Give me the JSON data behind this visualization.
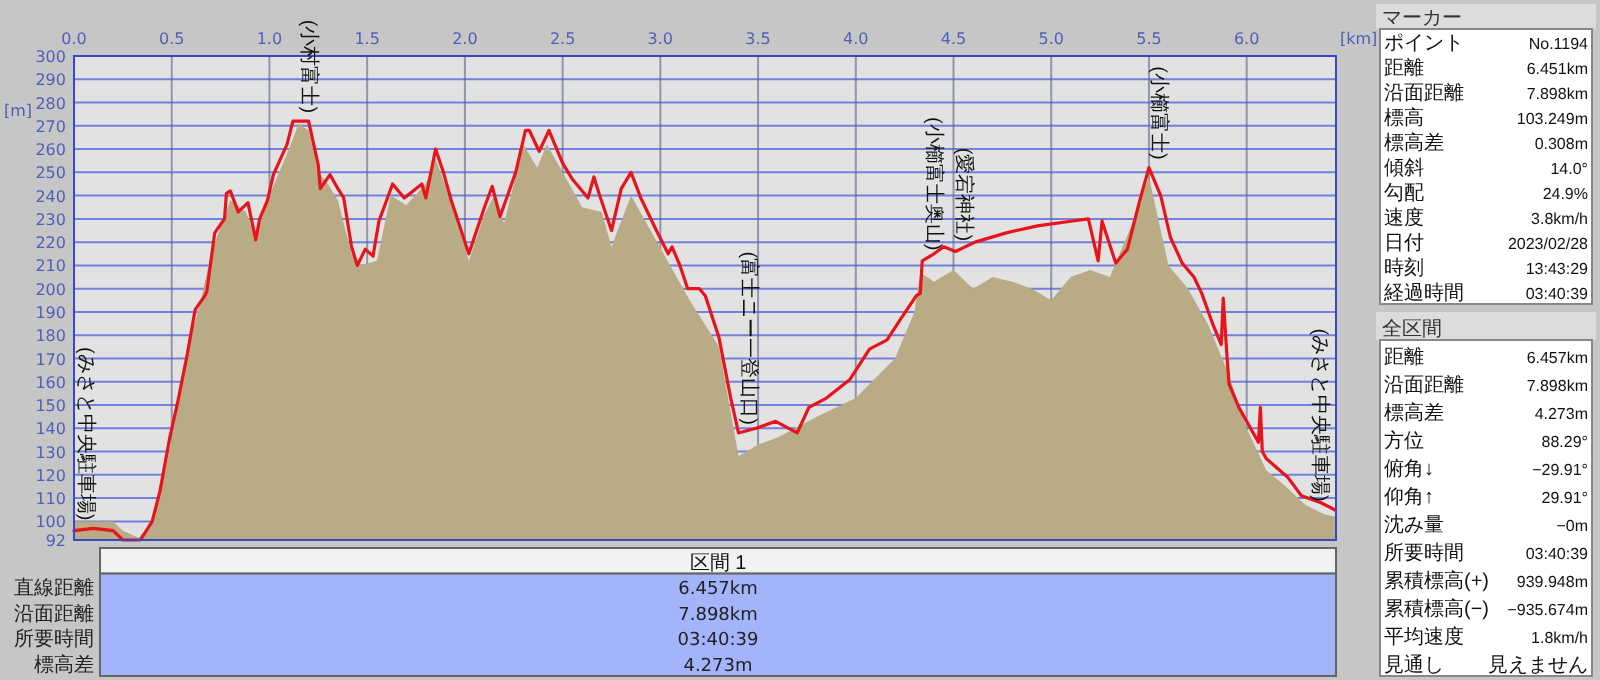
{
  "chart_data": [
    {
      "type": "line",
      "xlabel": "[km]",
      "ylabel": "[m]",
      "xlim": [
        0,
        6.457
      ],
      "ylim": [
        92,
        300
      ],
      "xticks": [
        {
          "value": 0,
          "label": "0.0"
        },
        0.5,
        {
          "value": 1,
          "label": "1.0"
        },
        1.5,
        {
          "value": 2,
          "label": "2.0"
        },
        2.5,
        {
          "value": 3,
          "label": "3.0"
        },
        3.5,
        {
          "value": 4,
          "label": "4.0"
        },
        4.5,
        {
          "value": 5,
          "label": "5.0"
        },
        5.5,
        {
          "value": 6,
          "label": "6.0"
        }
      ],
      "yticks": [
        92,
        100,
        110,
        120,
        130,
        140,
        150,
        160,
        170,
        180,
        190,
        200,
        210,
        220,
        230,
        240,
        250,
        260,
        270,
        280,
        290,
        300
      ],
      "grid": true,
      "series": [
        {
          "type": "area",
          "color": "#b9ab86",
          "x": [
            0,
            0.2,
            0.25,
            0.33,
            0.4,
            0.45,
            0.5,
            0.55,
            0.6,
            0.65,
            0.7,
            0.8,
            0.88,
            0.93,
            1.0,
            1.1,
            1.15,
            1.2,
            1.25,
            1.3,
            1.35,
            1.42,
            1.47,
            1.55,
            1.62,
            1.7,
            1.8,
            1.85,
            1.93,
            2.02,
            2.1,
            2.15,
            2.2,
            2.3,
            2.37,
            2.42,
            2.5,
            2.6,
            2.7,
            2.75,
            2.85,
            2.95,
            3.05,
            3.15,
            3.3,
            3.4,
            3.5,
            3.6,
            3.8,
            4.0,
            4.2,
            4.3,
            4.33,
            4.4,
            4.5,
            4.6,
            4.7,
            4.8,
            4.9,
            5.0,
            5.1,
            5.2,
            5.3,
            5.4,
            5.5,
            5.6,
            5.7,
            5.8,
            5.9,
            6.0,
            6.1,
            6.2,
            6.3,
            6.4,
            6.457
          ],
          "values": [
            100,
            100,
            96,
            93,
            100,
            115,
            135,
            160,
            180,
            195,
            215,
            238,
            233,
            222,
            240,
            260,
            271,
            268,
            250,
            245,
            238,
            215,
            210,
            212,
            240,
            236,
            245,
            256,
            237,
            212,
            232,
            240,
            228,
            262,
            252,
            262,
            250,
            235,
            233,
            218,
            240,
            225,
            210,
            195,
            175,
            128,
            133,
            136,
            145,
            153,
            170,
            190,
            207,
            203,
            208,
            200,
            205,
            203,
            200,
            195,
            205,
            208,
            205,
            225,
            248,
            210,
            200,
            185,
            165,
            140,
            122,
            115,
            107,
            103,
            102
          ]
        },
        {
          "type": "line",
          "color": "#e8141c",
          "x": [
            0,
            0.1,
            0.2,
            0.25,
            0.34,
            0.4,
            0.44,
            0.49,
            0.53,
            0.58,
            0.62,
            0.67,
            0.68,
            0.72,
            0.77,
            0.78,
            0.8,
            0.84,
            0.89,
            0.93,
            0.95,
            0.99,
            1.02,
            1.09,
            1.12,
            1.2,
            1.25,
            1.26,
            1.31,
            1.35,
            1.38,
            1.42,
            1.45,
            1.49,
            1.53,
            1.56,
            1.63,
            1.69,
            1.78,
            1.8,
            1.85,
            1.89,
            1.93,
            2.02,
            2.1,
            2.14,
            2.18,
            2.26,
            2.31,
            2.33,
            2.38,
            2.43,
            2.5,
            2.55,
            2.63,
            2.66,
            2.69,
            2.75,
            2.8,
            2.85,
            2.9,
            2.98,
            3.04,
            3.06,
            3.1,
            3.14,
            3.2,
            3.23,
            3.3,
            3.36,
            3.4,
            3.49,
            3.59,
            3.7,
            3.76,
            3.85,
            3.97,
            4.07,
            4.16,
            4.23,
            4.31,
            4.33,
            4.34,
            4.4,
            4.45,
            4.51,
            4.61,
            4.77,
            4.93,
            5.1,
            5.19,
            5.24,
            5.26,
            5.33,
            5.39,
            5.45,
            5.5,
            5.56,
            5.61,
            5.67,
            5.73,
            5.77,
            5.83,
            5.87,
            5.88,
            5.9,
            5.91,
            5.96,
            6.06,
            6.07,
            6.08,
            6.1,
            6.21,
            6.28,
            6.38,
            6.45
          ],
          "values": [
            96,
            97,
            96,
            92,
            92,
            100,
            113,
            136,
            151,
            172,
            191,
            197,
            199,
            224,
            230,
            241,
            242,
            233,
            237,
            221,
            230,
            238,
            249,
            262,
            272,
            272,
            253,
            243,
            249,
            243,
            239,
            218,
            210,
            217,
            214,
            229,
            245,
            239,
            245,
            239,
            260,
            250,
            238,
            215,
            235,
            244,
            231,
            250,
            268,
            268,
            259,
            268,
            254,
            247,
            239,
            248,
            240,
            225,
            243,
            250,
            239,
            225,
            215,
            218,
            210,
            200,
            200,
            197,
            179,
            153,
            138,
            140,
            143,
            138,
            149,
            153,
            161,
            174,
            178,
            187,
            197,
            198,
            212,
            215,
            218,
            216,
            220,
            224,
            227,
            229,
            230,
            212,
            229,
            211,
            217,
            237,
            252,
            240,
            222,
            211,
            205,
            198,
            184,
            176,
            196,
            170,
            159,
            149,
            134,
            149,
            130,
            127,
            119,
            111,
            108,
            105
          ]
        }
      ],
      "annotations": [
        {
          "text": "(みさと中央駐車場)",
          "x": 0,
          "y": 97
        },
        {
          "text": "(小村富士)",
          "x": 1.15,
          "y": 272
        },
        {
          "text": "(富士ニー一登山口)",
          "x": 3.4,
          "y": 138
        },
        {
          "text": "(小櫛富士奥山)",
          "x": 4.35,
          "y": 213
        },
        {
          "text": "(愛宕神社)",
          "x": 4.5,
          "y": 217
        },
        {
          "text": "(小櫛富士)",
          "x": 5.5,
          "y": 252
        },
        {
          "text": "(みさと中央駐車場)",
          "x": 6.457,
          "y": 105
        }
      ]
    },
    {
      "type": "other",
      "title": "マーカー",
      "categories": [
        "ポイント",
        "距離",
        "沿面距離",
        "標高",
        "標高差",
        "傾斜",
        "勾配",
        "速度",
        "日付",
        "時刻",
        "経過時間"
      ],
      "annotations": [
        "No.1194",
        "6.451km",
        "7.898km",
        "103.249m",
        "0.308m",
        "14.0°",
        "24.9%",
        "3.8km/h",
        "2023/02/28",
        "13:43:29",
        "03:40:39"
      ]
    },
    {
      "type": "other",
      "title": "全区間",
      "categories": [
        "距離",
        "沿面距離",
        "標高差",
        "方位",
        "俯角↓",
        "仰角↑",
        "沈み量",
        "所要時間",
        "累積標高(+)",
        "累積標高(−)",
        "平均速度",
        "見通し"
      ],
      "annotations": [
        "6.457km",
        "7.898km",
        "4.273m",
        "88.29°",
        "−29.91°",
        "29.91°",
        "−0m",
        "03:40:39",
        "939.948m",
        "−935.674m",
        "1.8km/h",
        "見えません"
      ]
    },
    {
      "type": "other",
      "title": "区間 1",
      "categories": [
        "直線距離",
        "沿面距離",
        "所要時間",
        "標高差"
      ],
      "annotations": [
        "6.457km",
        "7.898km",
        "03:40:39",
        "4.273m"
      ]
    }
  ]
}
